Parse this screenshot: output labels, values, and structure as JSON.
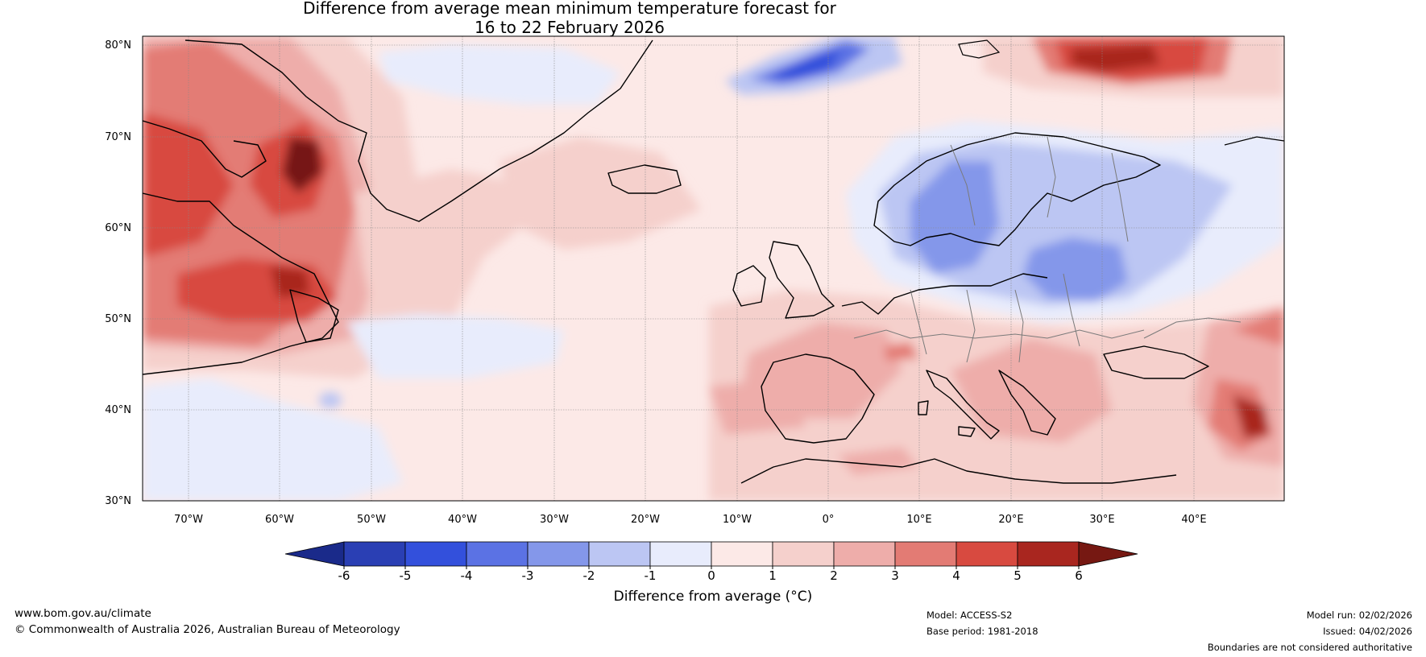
{
  "title": {
    "line1": "Difference from average mean minimum temperature forecast for",
    "line2": "16 to 22 February 2026"
  },
  "map": {
    "lat_labels": [
      "80°N",
      "70°N",
      "60°N",
      "50°N",
      "40°N",
      "30°N"
    ],
    "lon_labels": [
      "70°W",
      "60°W",
      "50°W",
      "40°W",
      "30°W",
      "20°W",
      "10°W",
      "0°",
      "10°E",
      "20°E",
      "30°E",
      "40°E"
    ],
    "lat_range": [
      30,
      81
    ],
    "lon_range": [
      -75,
      50
    ]
  },
  "colorbar": {
    "ticks": [
      "-6",
      "-5",
      "-4",
      "-3",
      "-2",
      "-1",
      "0",
      "1",
      "2",
      "3",
      "4",
      "5",
      "6"
    ],
    "colors": [
      "#1a2a8a",
      "#2a3fb4",
      "#3350dc",
      "#5b72e4",
      "#8497ea",
      "#bcc6f3",
      "#e8ecfc",
      "#fce9e7",
      "#f5d0cc",
      "#eeadaa",
      "#e37b74",
      "#d84a40",
      "#a9261f",
      "#761812"
    ],
    "label": "Difference from average (°C)"
  },
  "footer": {
    "website": "www.bom.gov.au/climate",
    "copyright": "© Commonwealth of Australia 2026, Australian Bureau of Meteorology",
    "model": "Model: ACCESS-S2",
    "base_period": "Base period: 1981-2018",
    "model_run": "Model run: 02/02/2026",
    "issued": "Issued: 04/02/2026",
    "disclaimer": "Boundaries are not considered authoritative"
  }
}
